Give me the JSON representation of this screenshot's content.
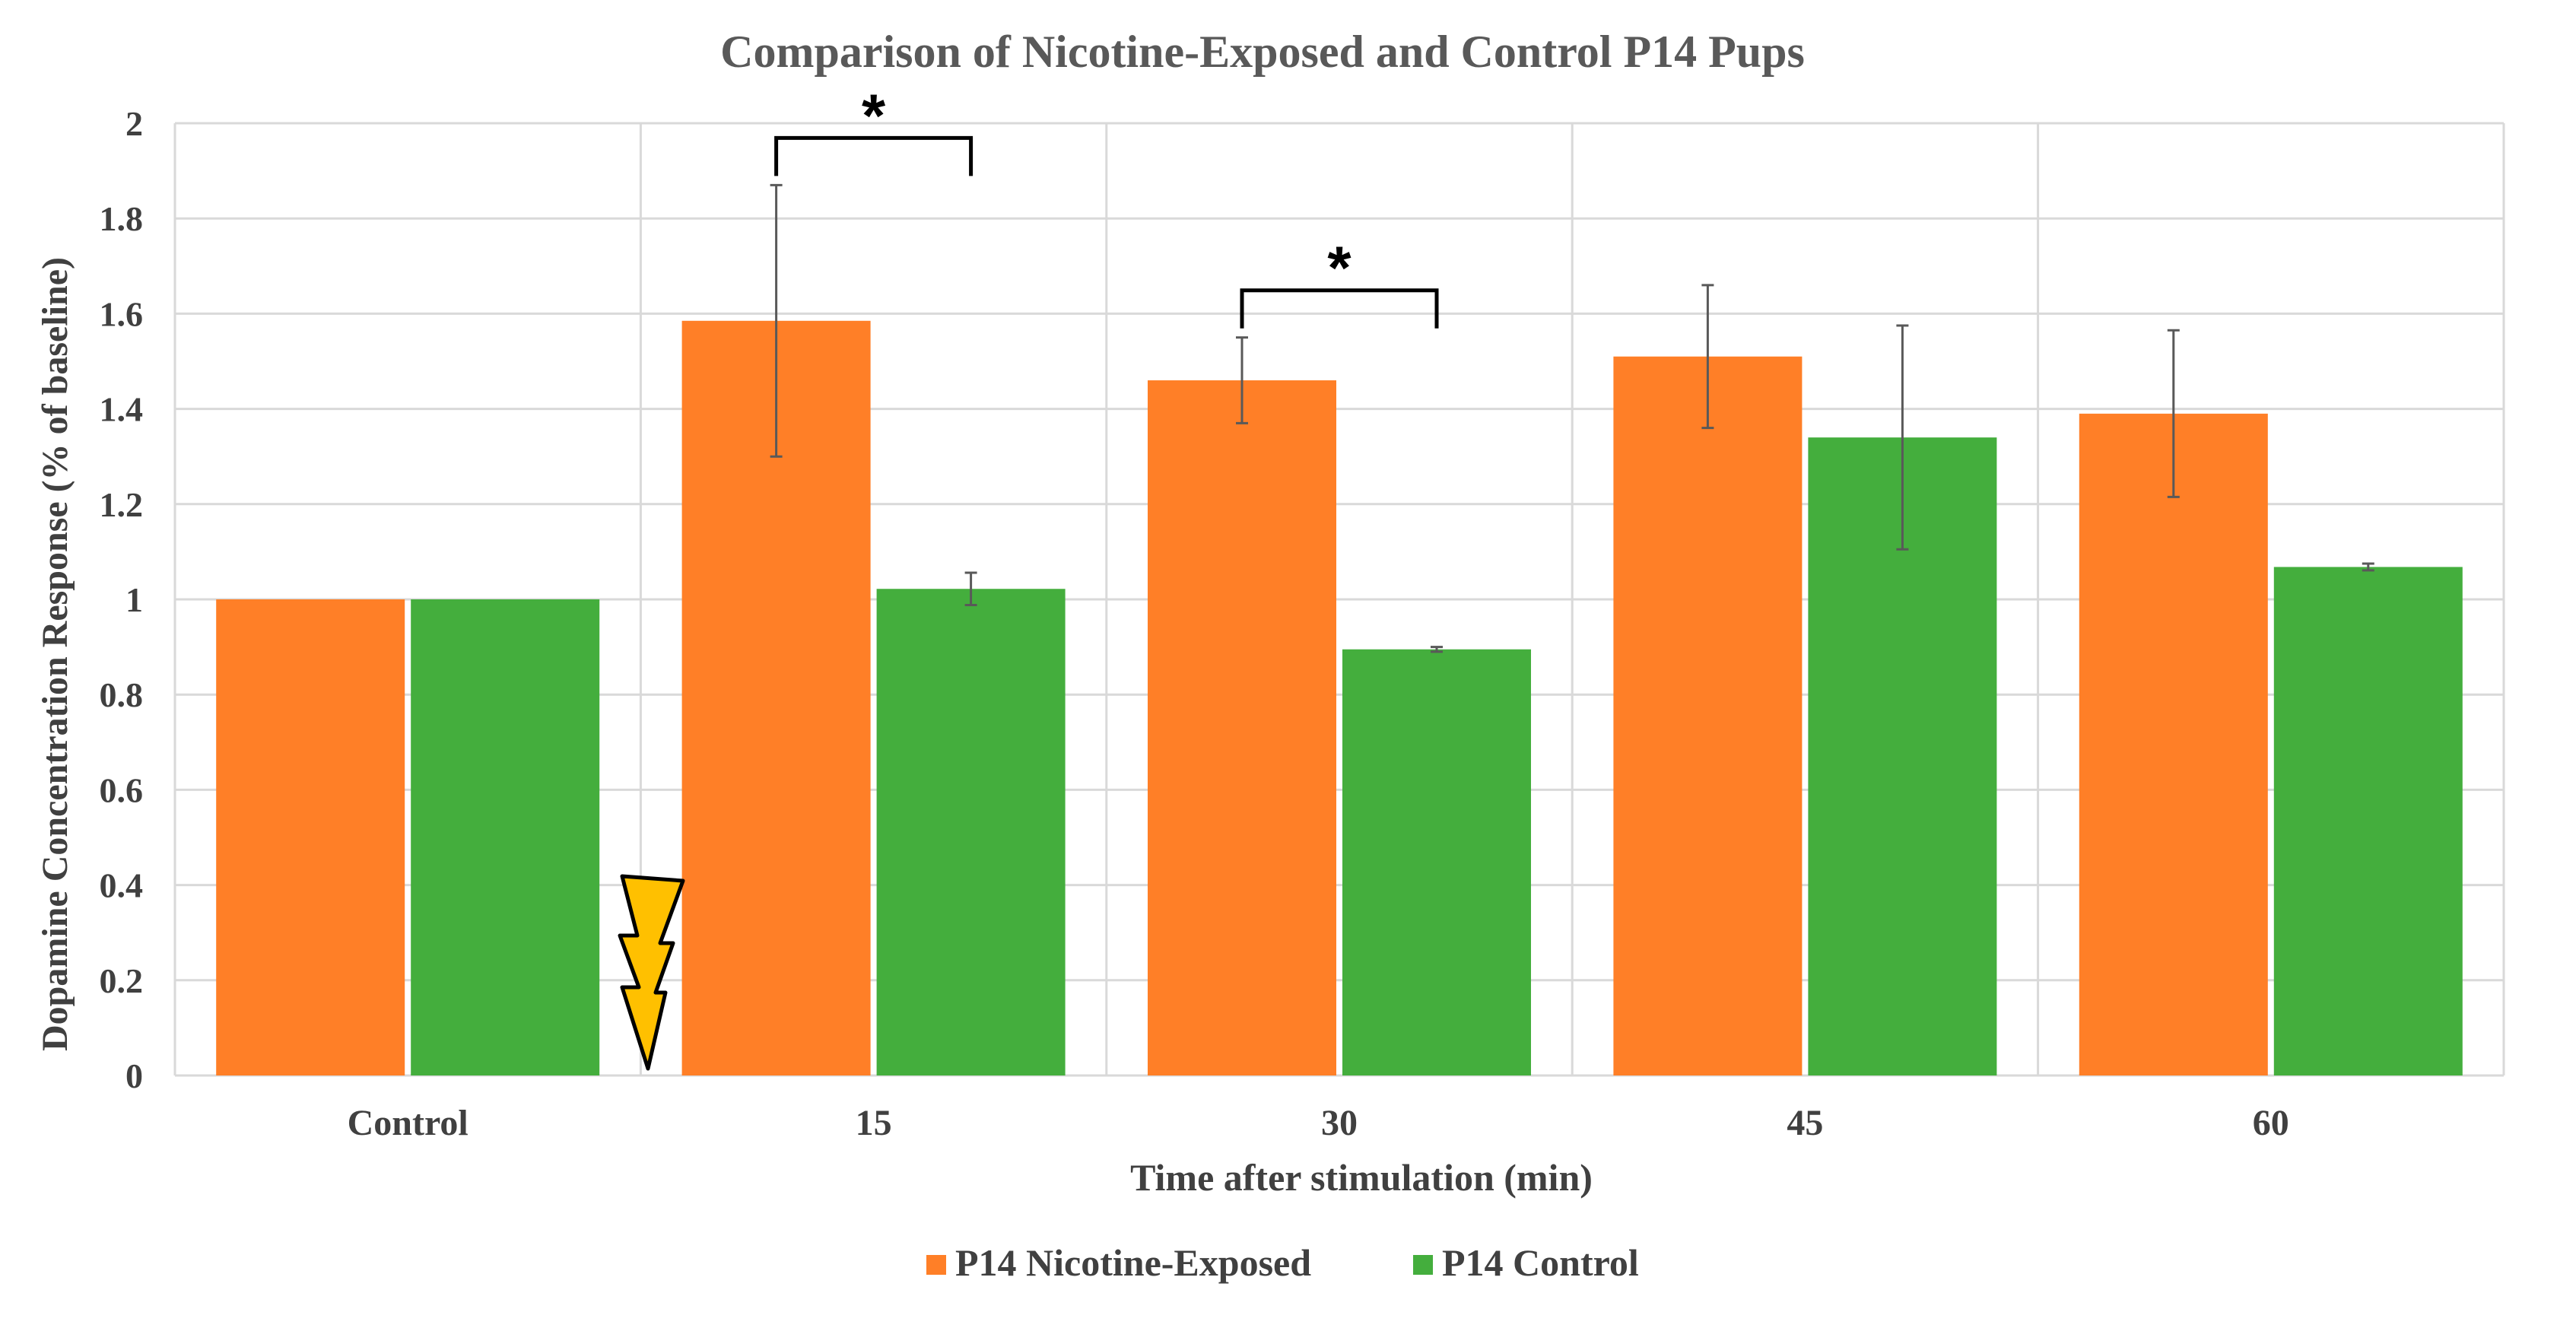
{
  "chart_data": {
    "type": "bar",
    "title": "Comparison of Nicotine-Exposed and Control P14 Pups",
    "xlabel": "Time after stimulation (min)",
    "ylabel": "Dopamine Concentration Response (% of baseline)",
    "categories": [
      "Control",
      "15",
      "30",
      "45",
      "60"
    ],
    "ylim": [
      0,
      2
    ],
    "yticks": [
      "0",
      "0.2",
      "0.4",
      "0.6",
      "0.8",
      "1",
      "1.2",
      "1.4",
      "1.6",
      "1.8",
      "2"
    ],
    "grid": true,
    "legend_position": "bottom",
    "series": [
      {
        "name": "P14 Nicotine-Exposed",
        "color": "#FF7F27",
        "values": [
          1.0,
          1.585,
          1.46,
          1.51,
          1.39
        ],
        "errors": [
          0,
          0.285,
          0.09,
          0.15,
          0.175
        ]
      },
      {
        "name": "P14 Control",
        "color": "#44AE3D",
        "values": [
          1.0,
          1.022,
          0.895,
          1.34,
          1.068
        ],
        "errors": [
          0,
          0.034,
          0.005,
          0.235,
          0.007
        ]
      }
    ],
    "significance": [
      {
        "category": "15",
        "label": "*"
      },
      {
        "category": "30",
        "label": "*"
      }
    ],
    "annotations": [
      {
        "type": "lightning-icon",
        "description": "stimulation marker before 15"
      }
    ]
  }
}
